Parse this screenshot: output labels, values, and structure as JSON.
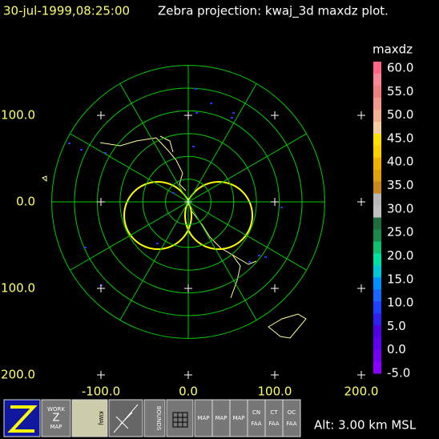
{
  "header": {
    "time": "30-jul-1999,08:25:00",
    "title": "Zebra projection: kwaj_3d maxdz plot."
  },
  "y_labels": [
    "100.0",
    "0.0",
    "100.0",
    "200.0"
  ],
  "x_labels": [
    "-100.0",
    "0.0",
    "100.0",
    "200.0"
  ],
  "colorbar": {
    "title": "maxdz",
    "labels": [
      "60.0",
      "55.0",
      "50.0",
      "45.0",
      "40.0",
      "35.0",
      "30.0",
      "25.0",
      "20.0",
      "15.0",
      "10.0",
      "5.0",
      "0.0",
      "-5.0"
    ],
    "colors": [
      "#ff6688",
      "#f88898",
      "#f08080",
      "#f49a8c",
      "#f4b090",
      "#f8cca0",
      "#ffe000",
      "#ffd000",
      "#f0b000",
      "#e0a010",
      "#c88820",
      "#b8b8b8",
      "#c0c0c0",
      "#1e6b3c",
      "#1a8a4a",
      "#10c070",
      "#00e0a0",
      "#00c8d8",
      "#0090ff",
      "#1868ff",
      "#2040ff",
      "#3020f0",
      "#5000e0",
      "#6000f0",
      "#7400f0",
      "#8800ff"
    ]
  },
  "toolbar": [
    [
      "WORK",
      "Z",
      "MAP"
    ],
    [
      "KWAJ"
    ],
    [
      "BOUNDS"
    ],
    [
      "MAP"
    ],
    [
      "MAP"
    ],
    [
      "MAP"
    ],
    [
      "CN",
      "FAA"
    ],
    [
      "CT",
      "FAA"
    ],
    [
      "OC",
      "FAA"
    ]
  ],
  "footer": "Alt: 3.00 km MSL"
}
